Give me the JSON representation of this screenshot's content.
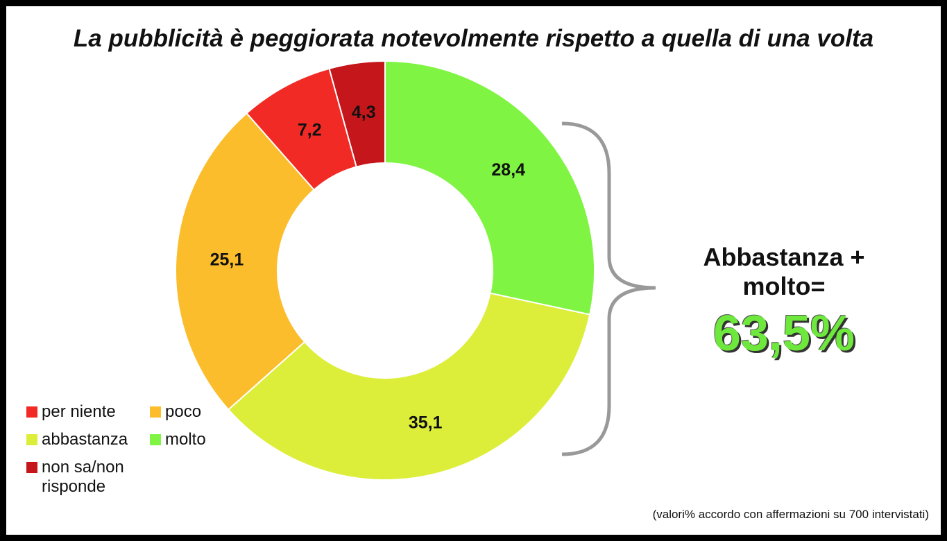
{
  "chart_data": {
    "type": "donut",
    "title": "La pubblicità è peggiorata notevolmente rispetto a quella di una volta",
    "categories": [
      "per niente",
      "poco",
      "abbastanza",
      "molto",
      "non sa/non risponde"
    ],
    "values": [
      7.2,
      25.1,
      35.1,
      28.4,
      4.3
    ],
    "value_labels": [
      "7,2",
      "25,1",
      "35,1",
      "28,4",
      "4,3"
    ],
    "colors": [
      "#f22a25",
      "#fbbd2b",
      "#dcee3a",
      "#7ff442",
      "#c4161b"
    ],
    "annotation": "Abbastanza + molto=",
    "annotation_value": "63,5%",
    "note": "(valori% accordo con affermazioni su 700 intervistati)"
  }
}
